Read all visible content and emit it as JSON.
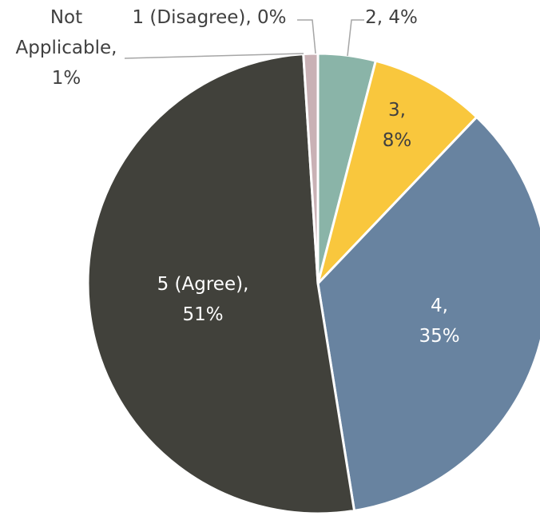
{
  "chart_data": {
    "type": "pie",
    "categories": [
      "1 (Disagree)",
      "2",
      "3",
      "4",
      "5 (Agree)",
      "Not Applicable"
    ],
    "values": [
      0,
      4,
      8,
      35,
      51,
      1
    ],
    "labels": [
      {
        "lines": [
          "1 (Disagree), 0%"
        ]
      },
      {
        "lines": [
          "2, 4%"
        ]
      },
      {
        "lines": [
          "3,",
          "8%"
        ]
      },
      {
        "lines": [
          "4,",
          "35%"
        ]
      },
      {
        "lines": [
          "5 (Agree),",
          "51%"
        ]
      },
      {
        "lines": [
          "Not",
          "Applicable,",
          "1%"
        ]
      }
    ],
    "colors": [
      "#9dc3e6",
      "#8ab4a8",
      "#f9c73d",
      "#6883a0",
      "#41413b",
      "#c9b1b5"
    ],
    "label_colors": [
      "#404040",
      "#404040",
      "#404040",
      "#ffffff",
      "#ffffff",
      "#404040"
    ],
    "leader_color": "#a6a6a6",
    "legend": "none"
  }
}
